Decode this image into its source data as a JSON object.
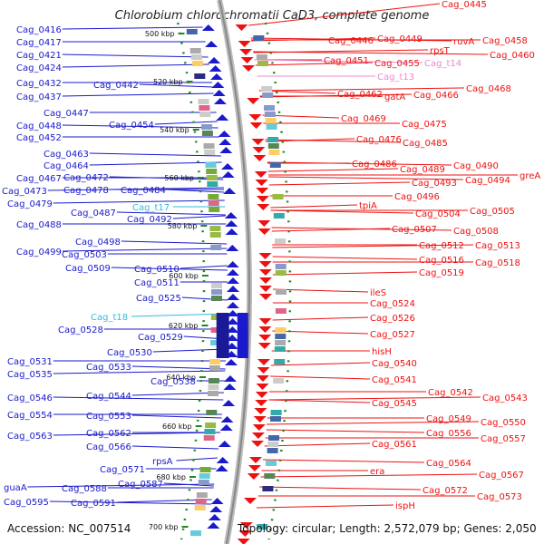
{
  "title": "Chlorobium chlorochromatii CaD3, complete genome",
  "accession_text": "Accession: NC_007514",
  "topology_text": "Topology: circular; Length: 2,572,079 bp; Genes: 2,050",
  "colors": {
    "forward": "#1a1acc",
    "reverse": "#ee1111",
    "rna_forward": "#33bbdd",
    "rna_reverse": "#ee88cc",
    "backbone": "#999999",
    "ticks": "#228822"
  },
  "kbp_ticks": [
    "500 kbp",
    "520 kbp",
    "540 kbp",
    "560 kbp",
    "580 kbp",
    "600 kbp",
    "620 kbp",
    "640 kbp",
    "660 kbp",
    "680 kbp",
    "700 kbp"
  ],
  "left_labels": [
    {
      "text": "Cag_0416",
      "rna": false
    },
    {
      "text": "Cag_0417",
      "rna": false
    },
    {
      "text": "Cag_0421",
      "rna": false
    },
    {
      "text": "Cag_0424",
      "rna": false
    },
    {
      "text": "Cag_0432",
      "rna": false
    },
    {
      "text": "Cag_0442",
      "rna": false
    },
    {
      "text": "Cag_0437",
      "rna": false
    },
    {
      "text": "Cag_0447",
      "rna": false
    },
    {
      "text": "Cag_0448",
      "rna": false
    },
    {
      "text": "Cag_0454",
      "rna": false
    },
    {
      "text": "Cag_0452",
      "rna": false
    },
    {
      "text": "Cag_0463",
      "rna": false
    },
    {
      "text": "Cag_0464",
      "rna": false
    },
    {
      "text": "Cag_0467",
      "rna": false
    },
    {
      "text": "Cag_0472",
      "rna": false
    },
    {
      "text": "Cag_0473",
      "rna": false
    },
    {
      "text": "Cag_0478",
      "rna": false
    },
    {
      "text": "Cag_0484",
      "rna": false
    },
    {
      "text": "Cag_0479",
      "rna": false
    },
    {
      "text": "Cag_t17",
      "rna": true
    },
    {
      "text": "Cag_0487",
      "rna": false
    },
    {
      "text": "Cag_0492",
      "rna": false
    },
    {
      "text": "Cag_0488",
      "rna": false
    },
    {
      "text": "Cag_0498",
      "rna": false
    },
    {
      "text": "Cag_0499",
      "rna": false
    },
    {
      "text": "Cag_0503",
      "rna": false
    },
    {
      "text": "Cag_0509",
      "rna": false
    },
    {
      "text": "Cag_0510",
      "rna": false
    },
    {
      "text": "Cag_0511",
      "rna": false
    },
    {
      "text": "Cag_0525",
      "rna": false
    },
    {
      "text": "Cag_t18",
      "rna": true
    },
    {
      "text": "Cag_0528",
      "rna": false
    },
    {
      "text": "Cag_0529",
      "rna": false
    },
    {
      "text": "Cag_0530",
      "rna": false
    },
    {
      "text": "Cag_0531",
      "rna": false
    },
    {
      "text": "Cag_0533",
      "rna": false
    },
    {
      "text": "Cag_0535",
      "rna": false
    },
    {
      "text": "Cag_0538",
      "rna": false
    },
    {
      "text": "Cag_0546",
      "rna": false
    },
    {
      "text": "Cag_0544",
      "rna": false
    },
    {
      "text": "Cag_0554",
      "rna": false
    },
    {
      "text": "Cag_0553",
      "rna": false
    },
    {
      "text": "Cag_0563",
      "rna": false
    },
    {
      "text": "Cag_0562",
      "rna": false
    },
    {
      "text": "Cag_0566",
      "rna": false
    },
    {
      "text": "rpsA",
      "rna": false
    },
    {
      "text": "Cag_0571",
      "rna": false
    },
    {
      "text": "Cag_0587",
      "rna": false
    },
    {
      "text": "guaA",
      "rna": false
    },
    {
      "text": "Cag_0588",
      "rna": false
    },
    {
      "text": "Cag_0595",
      "rna": false
    },
    {
      "text": "Cag_0591",
      "rna": false
    }
  ],
  "right_labels": [
    {
      "text": "Cag_0445",
      "rna": false
    },
    {
      "text": "Cag_0446",
      "rna": false
    },
    {
      "text": "Cag_0449",
      "rna": false
    },
    {
      "text": "ruvA",
      "rna": false
    },
    {
      "text": "Cag_0458",
      "rna": false
    },
    {
      "text": "rpsT",
      "rna": false
    },
    {
      "text": "Cag_0460",
      "rna": false
    },
    {
      "text": "Cag_0451",
      "rna": false
    },
    {
      "text": "Cag_0455",
      "rna": false
    },
    {
      "text": "Cag_t14",
      "rna": true
    },
    {
      "text": "Cag_t13",
      "rna": true
    },
    {
      "text": "Cag_0468",
      "rna": false
    },
    {
      "text": "Cag_0462",
      "rna": false
    },
    {
      "text": "gatA",
      "rna": false
    },
    {
      "text": "Cag_0466",
      "rna": false
    },
    {
      "text": "Cag_0469",
      "rna": false
    },
    {
      "text": "Cag_0475",
      "rna": false
    },
    {
      "text": "Cag_0476",
      "rna": false
    },
    {
      "text": "Cag_0485",
      "rna": false
    },
    {
      "text": "Cag_0486",
      "rna": false
    },
    {
      "text": "Cag_0489",
      "rna": false
    },
    {
      "text": "Cag_0490",
      "rna": false
    },
    {
      "text": "greA",
      "rna": false
    },
    {
      "text": "Cag_0493",
      "rna": false
    },
    {
      "text": "Cag_0494",
      "rna": false
    },
    {
      "text": "Cag_0496",
      "rna": false
    },
    {
      "text": "tpiA",
      "rna": false
    },
    {
      "text": "Cag_0504",
      "rna": false
    },
    {
      "text": "Cag_0505",
      "rna": false
    },
    {
      "text": "Cag_0507",
      "rna": false
    },
    {
      "text": "Cag_0508",
      "rna": false
    },
    {
      "text": "Cag_0512",
      "rna": false
    },
    {
      "text": "Cag_0513",
      "rna": false
    },
    {
      "text": "Cag_0516",
      "rna": false
    },
    {
      "text": "Cag_0518",
      "rna": false
    },
    {
      "text": "Cag_0519",
      "rna": false
    },
    {
      "text": "ileS",
      "rna": false
    },
    {
      "text": "Cag_0524",
      "rna": false
    },
    {
      "text": "Cag_0526",
      "rna": false
    },
    {
      "text": "Cag_0527",
      "rna": false
    },
    {
      "text": "hisH",
      "rna": false
    },
    {
      "text": "Cag_0540",
      "rna": false
    },
    {
      "text": "Cag_0541",
      "rna": false
    },
    {
      "text": "Cag_0542",
      "rna": false
    },
    {
      "text": "Cag_0543",
      "rna": false
    },
    {
      "text": "Cag_0545",
      "rna": false
    },
    {
      "text": "Cag_0549",
      "rna": false
    },
    {
      "text": "Cag_0550",
      "rna": false
    },
    {
      "text": "Cag_0556",
      "rna": false
    },
    {
      "text": "Cag_0557",
      "rna": false
    },
    {
      "text": "Cag_0561",
      "rna": false
    },
    {
      "text": "Cag_0564",
      "rna": false
    },
    {
      "text": "era",
      "rna": false
    },
    {
      "text": "Cag_0567",
      "rna": false
    },
    {
      "text": "Cag_0572",
      "rna": false
    },
    {
      "text": "Cag_0573",
      "rna": false
    },
    {
      "text": "ispH",
      "rna": false
    }
  ]
}
